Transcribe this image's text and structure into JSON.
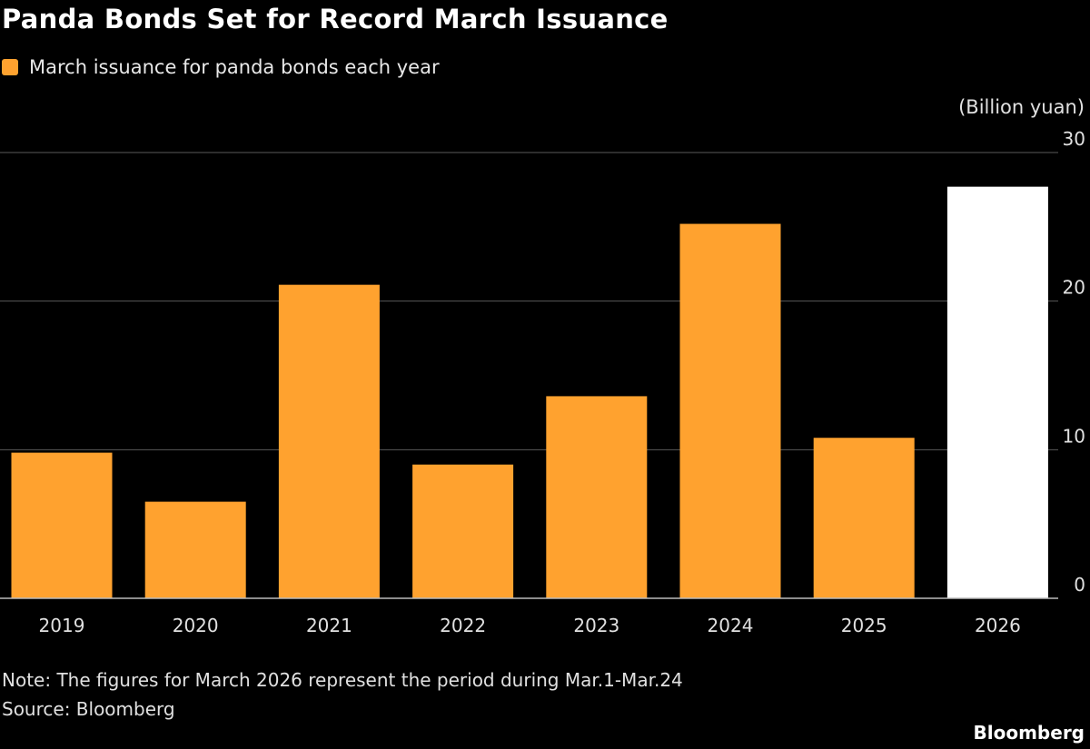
{
  "title": "Panda Bonds Set for Record March Issuance",
  "note": "Note: The figures for March 2026 represent the period during Mar.1-Mar.24",
  "source": "Source: Bloomberg",
  "brand": "Bloomberg",
  "chart_data": {
    "type": "bar",
    "legend": [
      {
        "name": "March issuance for panda bonds each year",
        "color": "#ffa22f"
      }
    ],
    "unit_label": "(Billion yuan)",
    "categories": [
      "2019",
      "2020",
      "2021",
      "2022",
      "2023",
      "2024",
      "2025",
      "2026"
    ],
    "series": [
      {
        "name": "March issuance for panda bonds each year",
        "values": [
          9.8,
          6.5,
          21.1,
          9.0,
          13.6,
          25.2,
          10.8,
          27.7
        ]
      }
    ],
    "bar_colors": [
      "#ffa22f",
      "#ffa22f",
      "#ffa22f",
      "#ffa22f",
      "#ffa22f",
      "#ffa22f",
      "#ffa22f",
      "#ffffff"
    ],
    "ylim": [
      0,
      30
    ],
    "yticks": [
      0,
      10,
      20,
      30
    ],
    "y_axis_position": "right",
    "grid": true,
    "legend_position": "top-left"
  }
}
